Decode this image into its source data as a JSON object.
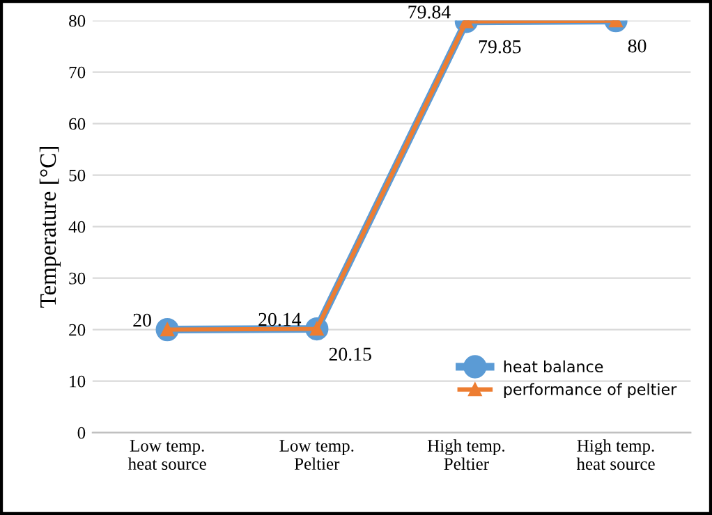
{
  "chart_data": {
    "type": "line",
    "categories": [
      "Low temp.\nheat source",
      "Low temp.\nPeltier",
      "High temp.\nPeltier",
      "High temp.\nheat source"
    ],
    "ylabel": "Temperature [°C]",
    "ylim": [
      0,
      80
    ],
    "yticks": [
      0,
      10,
      20,
      30,
      40,
      50,
      60,
      70,
      80
    ],
    "grid": "y",
    "legend": "right",
    "series": [
      {
        "name": "heat balance",
        "color": "#5b9bd5",
        "marker": "circle",
        "values": [
          20,
          20.14,
          79.84,
          80
        ],
        "value_labels": [
          "20",
          "20.14",
          "79.84",
          null
        ]
      },
      {
        "name": "performance of peltier",
        "color": "#ed7d31",
        "marker": "triangle",
        "values": [
          20,
          20.15,
          79.85,
          80
        ],
        "value_labels": [
          null,
          "20.15",
          "79.85",
          "80"
        ]
      }
    ]
  }
}
